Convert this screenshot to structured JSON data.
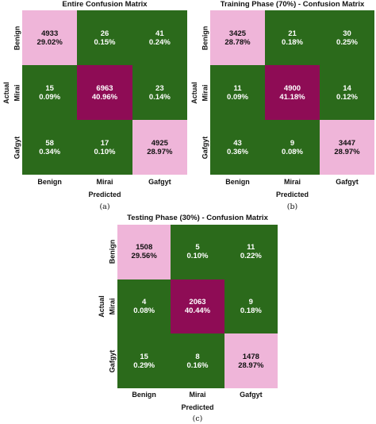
{
  "colors": {
    "dark_green": "#2b6a1b",
    "maroon": "#8e0c55",
    "light_pink": "#efb5d9"
  },
  "chart_data": [
    {
      "type": "heatmap",
      "title": "Entire Confusion Matrix",
      "xlabel": "Predicted",
      "ylabel": "Actual",
      "x_ticks": [
        "Benign",
        "Mirai",
        "Gafgyt"
      ],
      "y_ticks": [
        "Benign",
        "Mirai",
        "Gafgyt"
      ],
      "values": [
        [
          4933,
          26,
          41
        ],
        [
          15,
          6963,
          23
        ],
        [
          58,
          17,
          4925
        ]
      ],
      "percent": [
        [
          "29.02%",
          "0.15%",
          "0.24%"
        ],
        [
          "0.09%",
          "40.96%",
          "0.14%"
        ],
        [
          "0.34%",
          "0.10%",
          "28.97%"
        ]
      ],
      "caption": "(a)"
    },
    {
      "type": "heatmap",
      "title": "Training Phase (70%) - Confusion Matrix",
      "xlabel": "Predicted",
      "ylabel": "Actual",
      "x_ticks": [
        "Benign",
        "Mirai",
        "Gafgyt"
      ],
      "y_ticks": [
        "Benign",
        "Mirai",
        "Gafgyt"
      ],
      "values": [
        [
          3425,
          21,
          30
        ],
        [
          11,
          4900,
          14
        ],
        [
          43,
          9,
          3447
        ]
      ],
      "percent": [
        [
          "28.78%",
          "0.18%",
          "0.25%"
        ],
        [
          "0.09%",
          "41.18%",
          "0.12%"
        ],
        [
          "0.36%",
          "0.08%",
          "28.97%"
        ]
      ],
      "caption": "(b)"
    },
    {
      "type": "heatmap",
      "title": "Testing Phase (30%) - Confusion Matrix",
      "xlabel": "Predicted",
      "ylabel": "Actual",
      "x_ticks": [
        "Benign",
        "Mirai",
        "Gafgyt"
      ],
      "y_ticks": [
        "Benign",
        "Mirai",
        "Gafgyt"
      ],
      "values": [
        [
          1508,
          5,
          11
        ],
        [
          4,
          2063,
          9
        ],
        [
          15,
          8,
          1478
        ]
      ],
      "percent": [
        [
          "29.56%",
          "0.10%",
          "0.22%"
        ],
        [
          "0.08%",
          "40.44%",
          "0.18%"
        ],
        [
          "0.29%",
          "0.16%",
          "28.97%"
        ]
      ],
      "caption": "(c)"
    }
  ]
}
